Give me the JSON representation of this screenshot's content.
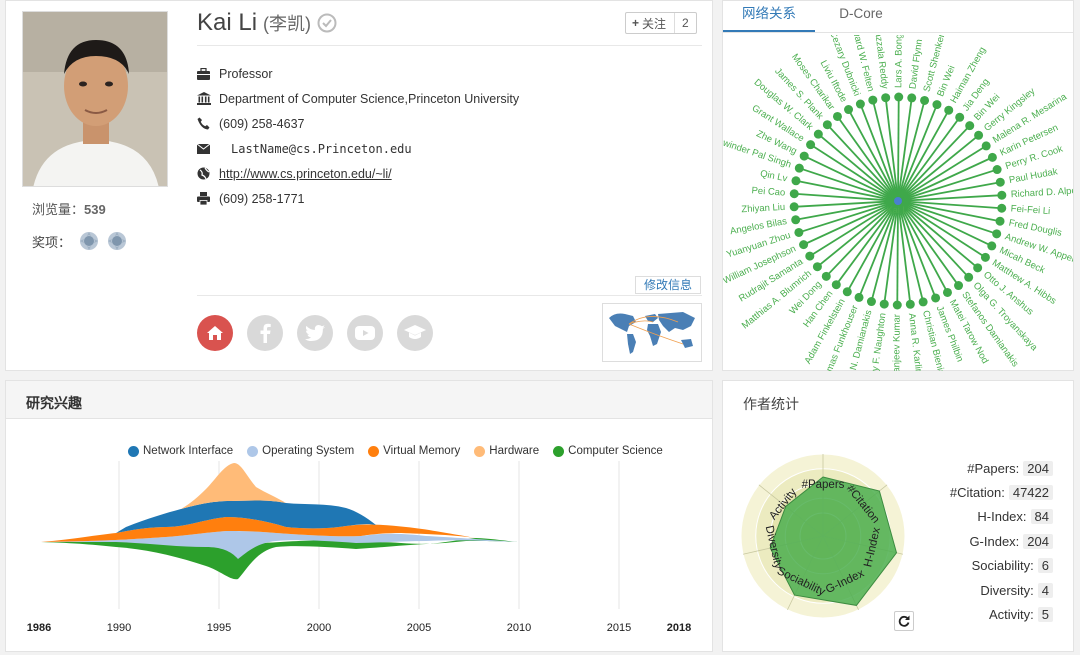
{
  "profile": {
    "name": "Kai Li",
    "name_cn": "(李凯)",
    "follow_label": "关注",
    "follow_count": "2",
    "position": "Professor",
    "affiliation": "Department of Computer Science,Princeton University",
    "phone": "(609) 258-4637",
    "email": "LastName@cs.Princeton.edu",
    "homepage": "http://www.cs.princeton.edu/~li/",
    "fax": "(609) 258-1771",
    "views_label": "浏览量：",
    "views_count": "539",
    "awards_label": "奖项：",
    "edit_label": "修改信息"
  },
  "network": {
    "tabs": [
      "网络关系",
      "D-Core"
    ],
    "center": "Kai Li",
    "nodes": [
      "Edward W. Felten",
      "Sazzala Reddy",
      "Lars A. Bongo",
      "David Flynn",
      "Scott Shenker",
      "Bin Wei",
      "Haiman Zheng",
      "Jia Deng",
      "Bin Wei",
      "Gerry Kingsley",
      "Malena R. Mesarina",
      "Karin Petersen",
      "Perry R. Cook",
      "Paul Hudak",
      "Richard D. Alpert",
      "Fei-Fei Li",
      "Fred Douglis",
      "Andrew W. Appel",
      "Micah Beck",
      "Matthew A. Hibbs",
      "Otto J. Anshus",
      "Olga G. Troyanskaya",
      "Stefanos Damianakis",
      "Matei Tarow Nod",
      "James Philbin",
      "Christian Bienia",
      "Anna R. Karlin",
      "Sanjeev Kumar",
      "Jeffrey F. Naughton",
      "Christos N. Damianakis",
      "Thomas Funkhouser",
      "Adam Finkelstein",
      "Han Chen",
      "Wei Dong",
      "Matthias A. Blumrich",
      "Rudrajit Samanta",
      "William Josephson",
      "Yuanyuan Zhou",
      "Angelos Bilas",
      "Zhiyan Liu",
      "Pei Cao",
      "Qin Lv",
      "Jaswinder Pal Singh",
      "Zhe Wang",
      "Grant Wallace",
      "Douglas W. Clark",
      "James S. Plank",
      "Moses Charikar",
      "Liviu Iftode",
      "Cezary Dubnicki"
    ]
  },
  "interests": {
    "title": "研究兴趣",
    "legend": [
      {
        "name": "Network Interface",
        "color": "#1f77b4"
      },
      {
        "name": "Operating System",
        "color": "#aec7e8"
      },
      {
        "name": "Virtual Memory",
        "color": "#ff7f0e"
      },
      {
        "name": "Hardware",
        "color": "#ffbb78"
      },
      {
        "name": "Computer Science",
        "color": "#2ca02c"
      }
    ],
    "axis": [
      "1986",
      "1990",
      "1995",
      "2000",
      "2005",
      "2010",
      "2015",
      "2018"
    ]
  },
  "stats": {
    "title": "作者统计",
    "radar_labels": [
      "#Papers",
      "#Citation",
      "H-Index",
      "G-Index",
      "Sociability",
      "Diversity",
      "Activity"
    ],
    "rows": [
      {
        "k": "#Papers:",
        "v": "204"
      },
      {
        "k": "#Citation:",
        "v": "47422"
      },
      {
        "k": "H-Index:",
        "v": "84"
      },
      {
        "k": "G-Index:",
        "v": "204"
      },
      {
        "k": "Sociability:",
        "v": "6"
      },
      {
        "k": "Diversity:",
        "v": "4"
      },
      {
        "k": "Activity:",
        "v": "5"
      }
    ]
  }
}
